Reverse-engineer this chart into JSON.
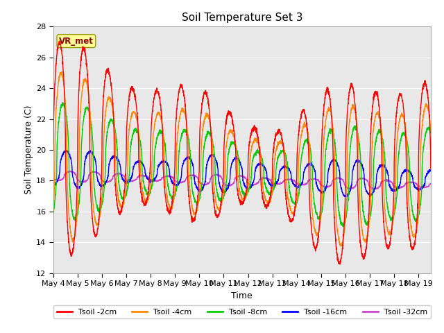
{
  "title": "Soil Temperature Set 3",
  "xlabel": "Time",
  "ylabel": "Soil Temperature (C)",
  "ylim": [
    12,
    28
  ],
  "yticks": [
    12,
    14,
    16,
    18,
    20,
    22,
    24,
    26,
    28
  ],
  "bg_color": "#e8e8e8",
  "vr_met_label": "VR_met",
  "vr_met_text_color": "#8b0000",
  "vr_met_box_color": "#ffff99",
  "legend_entries": [
    "Tsoil -2cm",
    "Tsoil -4cm",
    "Tsoil -8cm",
    "Tsoil -16cm",
    "Tsoil -32cm"
  ],
  "line_colors": [
    "#ff0000",
    "#ff8800",
    "#00cc00",
    "#0000ff",
    "#cc44cc"
  ],
  "xtick_labels": [
    "May 4",
    "May 5",
    "May 6",
    "May 7",
    "May 8",
    "May 9",
    "May 10",
    "May 11",
    "May 12",
    "May 13",
    "May 14",
    "May 15",
    "May 16",
    "May 17",
    "May 18",
    "May 19"
  ],
  "n_days": 15.5,
  "n_points": 3000
}
